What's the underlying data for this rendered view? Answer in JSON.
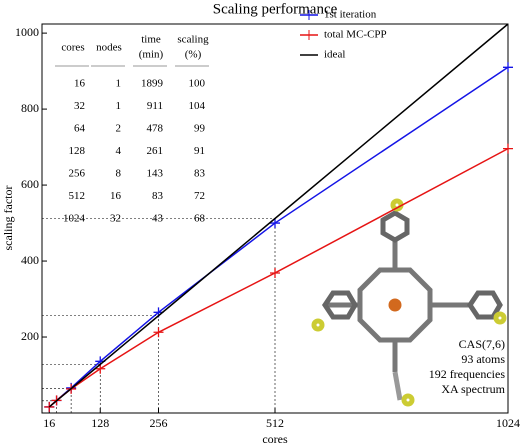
{
  "chart_data": {
    "type": "line",
    "title": "Scaling performance",
    "xlabel": "cores",
    "ylabel": "scaling factor",
    "x": [
      16,
      32,
      64,
      128,
      256,
      512,
      1024
    ],
    "series": [
      {
        "name": "1st iteration",
        "color": "#1414e6",
        "marker": "+",
        "values": [
          16,
          33,
          66,
          136,
          265,
          500,
          910
        ]
      },
      {
        "name": "total MC-CPP",
        "color": "#e61414",
        "marker": "+",
        "values": [
          16,
          33.3,
          63.4,
          116.5,
          212.5,
          368.6,
          696
        ]
      },
      {
        "name": "ideal",
        "color": "#000000",
        "marker": "none",
        "values": [
          16,
          32,
          64,
          128,
          256,
          512,
          1024
        ]
      }
    ],
    "xlim": [
      0,
      1024
    ],
    "xticks": [
      16,
      128,
      256,
      512,
      1024
    ],
    "ylim": [
      0,
      1024
    ],
    "yticks": [
      200,
      400,
      600,
      800,
      1000
    ],
    "legend": "top-center",
    "annotations": [
      "CAS(7,6)",
      "93 atoms",
      "192 frequencies",
      "XA spectrum"
    ]
  },
  "table": {
    "header": [
      [
        "cores"
      ],
      [
        "nodes"
      ],
      [
        "time",
        "(min)"
      ],
      [
        "scaling",
        "(%)"
      ]
    ],
    "rows": [
      [
        "16",
        "1",
        "1899",
        "100"
      ],
      [
        "32",
        "1",
        "911",
        "104"
      ],
      [
        "64",
        "2",
        "478",
        "99"
      ],
      [
        "128",
        "4",
        "261",
        "91"
      ],
      [
        "256",
        "8",
        "143",
        "83"
      ],
      [
        "512",
        "16",
        "83",
        "72"
      ],
      [
        "1024",
        "32",
        "43",
        "68"
      ]
    ]
  }
}
